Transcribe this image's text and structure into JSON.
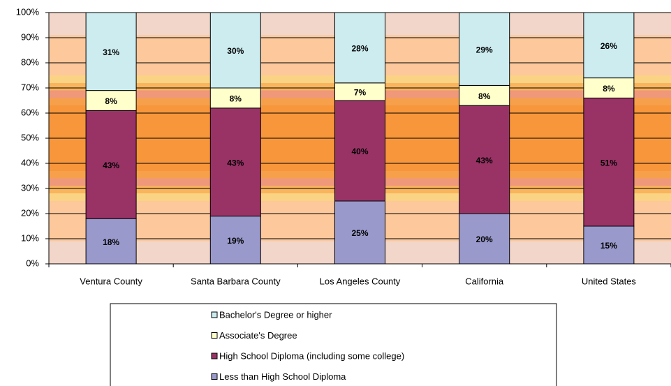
{
  "chart_data": {
    "type": "stacked-bar",
    "categories": [
      "Ventura County",
      "Santa Barbara County",
      "Los Angeles County",
      "California",
      "United States"
    ],
    "series": [
      {
        "name": "Less than High School Diploma",
        "color": "#9999cc",
        "values": [
          18,
          19,
          25,
          20,
          15
        ],
        "value_labels": [
          "18%",
          "19%",
          "25%",
          "20%",
          "15%"
        ]
      },
      {
        "name": "High School Diploma (including some college)",
        "color": "#993366",
        "values": [
          43,
          43,
          40,
          43,
          51
        ],
        "value_labels": [
          "43%",
          "43%",
          "40%",
          "43%",
          "51%"
        ]
      },
      {
        "name": "Associate's Degree",
        "color": "#ffffcc",
        "values": [
          8,
          8,
          7,
          8,
          8
        ],
        "value_labels": [
          "8%",
          "8%",
          "7%",
          "8%",
          "8%"
        ]
      },
      {
        "name": "Bachelor's Degree or higher",
        "color": "#ccecf0",
        "values": [
          31,
          30,
          28,
          29,
          26
        ],
        "value_labels": [
          "31%",
          "30%",
          "28%",
          "29%",
          "26%"
        ]
      }
    ],
    "ylim": [
      0,
      100
    ],
    "yticks": [
      {
        "value": 0,
        "label": "0%"
      },
      {
        "value": 10,
        "label": "10%"
      },
      {
        "value": 20,
        "label": "20%"
      },
      {
        "value": 30,
        "label": "30%"
      },
      {
        "value": 40,
        "label": "40%"
      },
      {
        "value": 50,
        "label": "50%"
      },
      {
        "value": 60,
        "label": "60%"
      },
      {
        "value": 70,
        "label": "70%"
      },
      {
        "value": 80,
        "label": "80%"
      },
      {
        "value": 90,
        "label": "90%"
      },
      {
        "value": 100,
        "label": "100%"
      }
    ],
    "grid": true
  }
}
